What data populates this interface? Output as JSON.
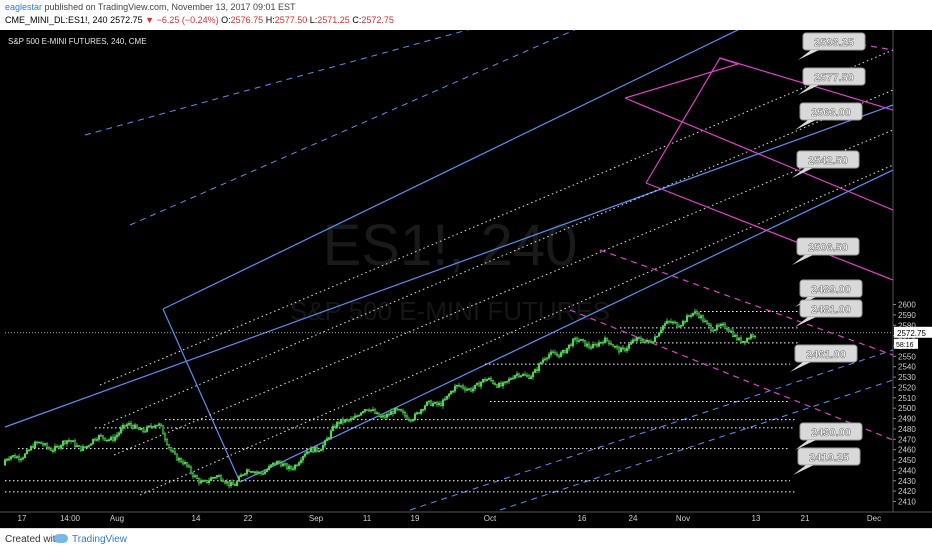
{
  "header": {
    "author": "eaglestar",
    "published_text": "published on TradingView.com, November 13, 2017 09:01 EST",
    "symbol": "CME_MINI_DL:ES1!, 240",
    "last": "2572.75",
    "change": "−6.25 (−0.24%)",
    "open_label": "O:",
    "open": "2576.75",
    "high_label": "H:",
    "high": "2577.50",
    "low_label": "L:",
    "low": "2571.25",
    "close_label": "C:",
    "close": "2572.75"
  },
  "chart": {
    "legend_title": "S&P 500 E-MINI FUTURES, 240, CME",
    "watermark_symbol": "ES1!, 240",
    "watermark_subtitle": "S&P 500 E-MINI FUTURES",
    "price_tag": "2572.75",
    "countdown_tag": "58:16"
  },
  "footer": {
    "created_with": "Created with",
    "brand": "TradingView"
  },
  "colors": {
    "background": "#000000",
    "candle": "#57d15b",
    "channel": "#5b8ff0",
    "pitchfork": "#e040c8",
    "level": "#ffffff",
    "callout": "#d9d9d9"
  },
  "chart_data": {
    "type": "candlestick",
    "interval": "240",
    "ylim": [
      2405,
      2605
    ],
    "y_ticks": [
      2410,
      2420,
      2430,
      2440,
      2450,
      2460,
      2470,
      2480,
      2490,
      2500,
      2510,
      2520,
      2530,
      2540,
      2550,
      2560,
      2570,
      2580,
      2590,
      2600
    ],
    "x_ticks": [
      "17",
      "14:00",
      "Aug",
      "14",
      "22",
      "Sep",
      "11",
      "19",
      "Oct",
      "16",
      "24",
      "Nov",
      "13",
      "21",
      "Dec"
    ],
    "horizontal_levels": [
      2593.25,
      2577.5,
      2563.0,
      2542.5,
      2506.5,
      2489.0,
      2481.0,
      2461.0,
      2430.0,
      2419.25
    ],
    "level_labels": [
      "2593.25",
      "2577.50",
      "2563.00",
      "2542.50",
      "2506.50",
      "2489.00",
      "2481.00",
      "2461.00",
      "2430.00",
      "2419.25"
    ],
    "last_price": 2572.75,
    "price_path": [
      {
        "x": "17",
        "y": 2445
      },
      {
        "x": "14:00",
        "y": 2470
      },
      {
        "x": "Aug",
        "y": 2478
      },
      {
        "x": "14",
        "y": 2442
      },
      {
        "x": "22",
        "y": 2425
      },
      {
        "x": "Sep",
        "y": 2450
      },
      {
        "x": "11",
        "y": 2487
      },
      {
        "x": "19",
        "y": 2500
      },
      {
        "x": "Oct",
        "y": 2520
      },
      {
        "x": "16",
        "y": 2552
      },
      {
        "x": "24",
        "y": 2565
      },
      {
        "x": "Nov",
        "y": 2583
      },
      {
        "x": "13",
        "y": 2572.75
      }
    ]
  }
}
